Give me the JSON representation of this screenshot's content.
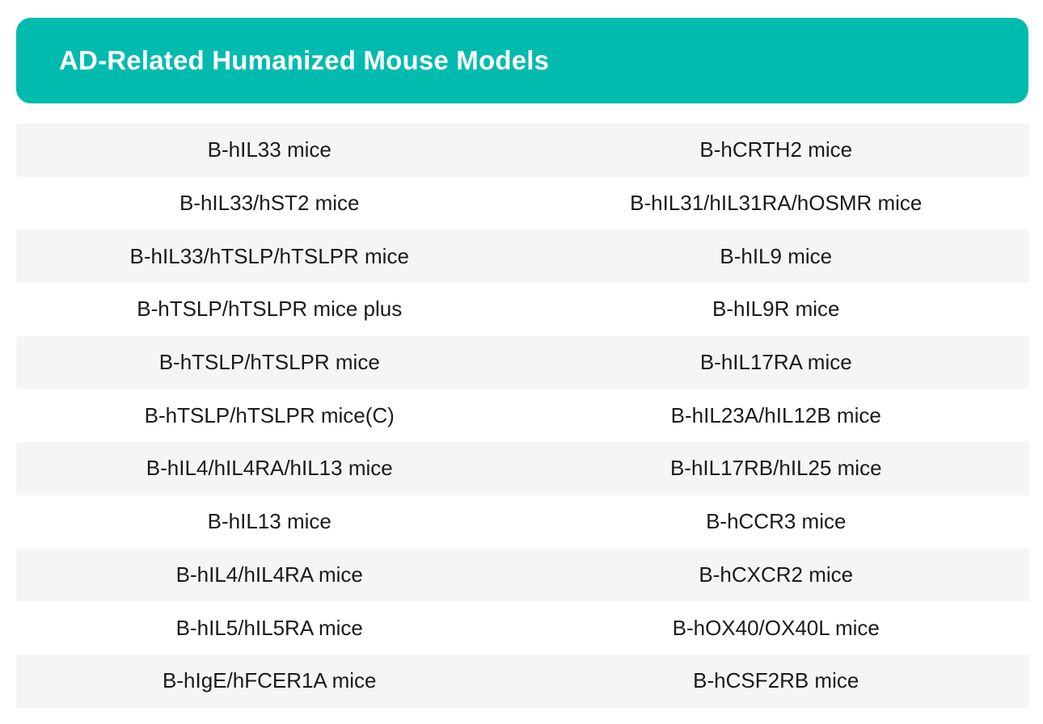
{
  "header": {
    "title": "AD-Related Humanized Mouse Models"
  },
  "colors": {
    "header_bg": "#01bbae",
    "header_text": "#ffffff",
    "row_shaded": "#f5f5f5",
    "row_plain": "#ffffff",
    "cell_text": "#1a1a1a"
  },
  "rows": [
    {
      "left": "B-hIL33 mice",
      "right": "B-hCRTH2 mice"
    },
    {
      "left": "B-hIL33/hST2 mice",
      "right": "B-hIL31/hIL31RA/hOSMR mice"
    },
    {
      "left": "B-hIL33/hTSLP/hTSLPR mice",
      "right": "B-hIL9 mice"
    },
    {
      "left": "B-hTSLP/hTSLPR mice plus",
      "right": "B-hIL9R mice"
    },
    {
      "left": "B-hTSLP/hTSLPR mice",
      "right": "B-hIL17RA mice"
    },
    {
      "left": "B-hTSLP/hTSLPR mice(C)",
      "right": "B-hIL23A/hIL12B mice"
    },
    {
      "left": "B-hIL4/hIL4RA/hIL13 mice",
      "right": "B-hIL17RB/hIL25 mice"
    },
    {
      "left": "B-hIL13 mice",
      "right": "B-hCCR3 mice"
    },
    {
      "left": "B-hIL4/hIL4RA mice",
      "right": "B-hCXCR2 mice"
    },
    {
      "left": "B-hIL5/hIL5RA mice",
      "right": "B-hOX40/OX40L mice"
    },
    {
      "left": "B-hIgE/hFCER1A mice",
      "right": "B-hCSF2RB mice"
    }
  ]
}
